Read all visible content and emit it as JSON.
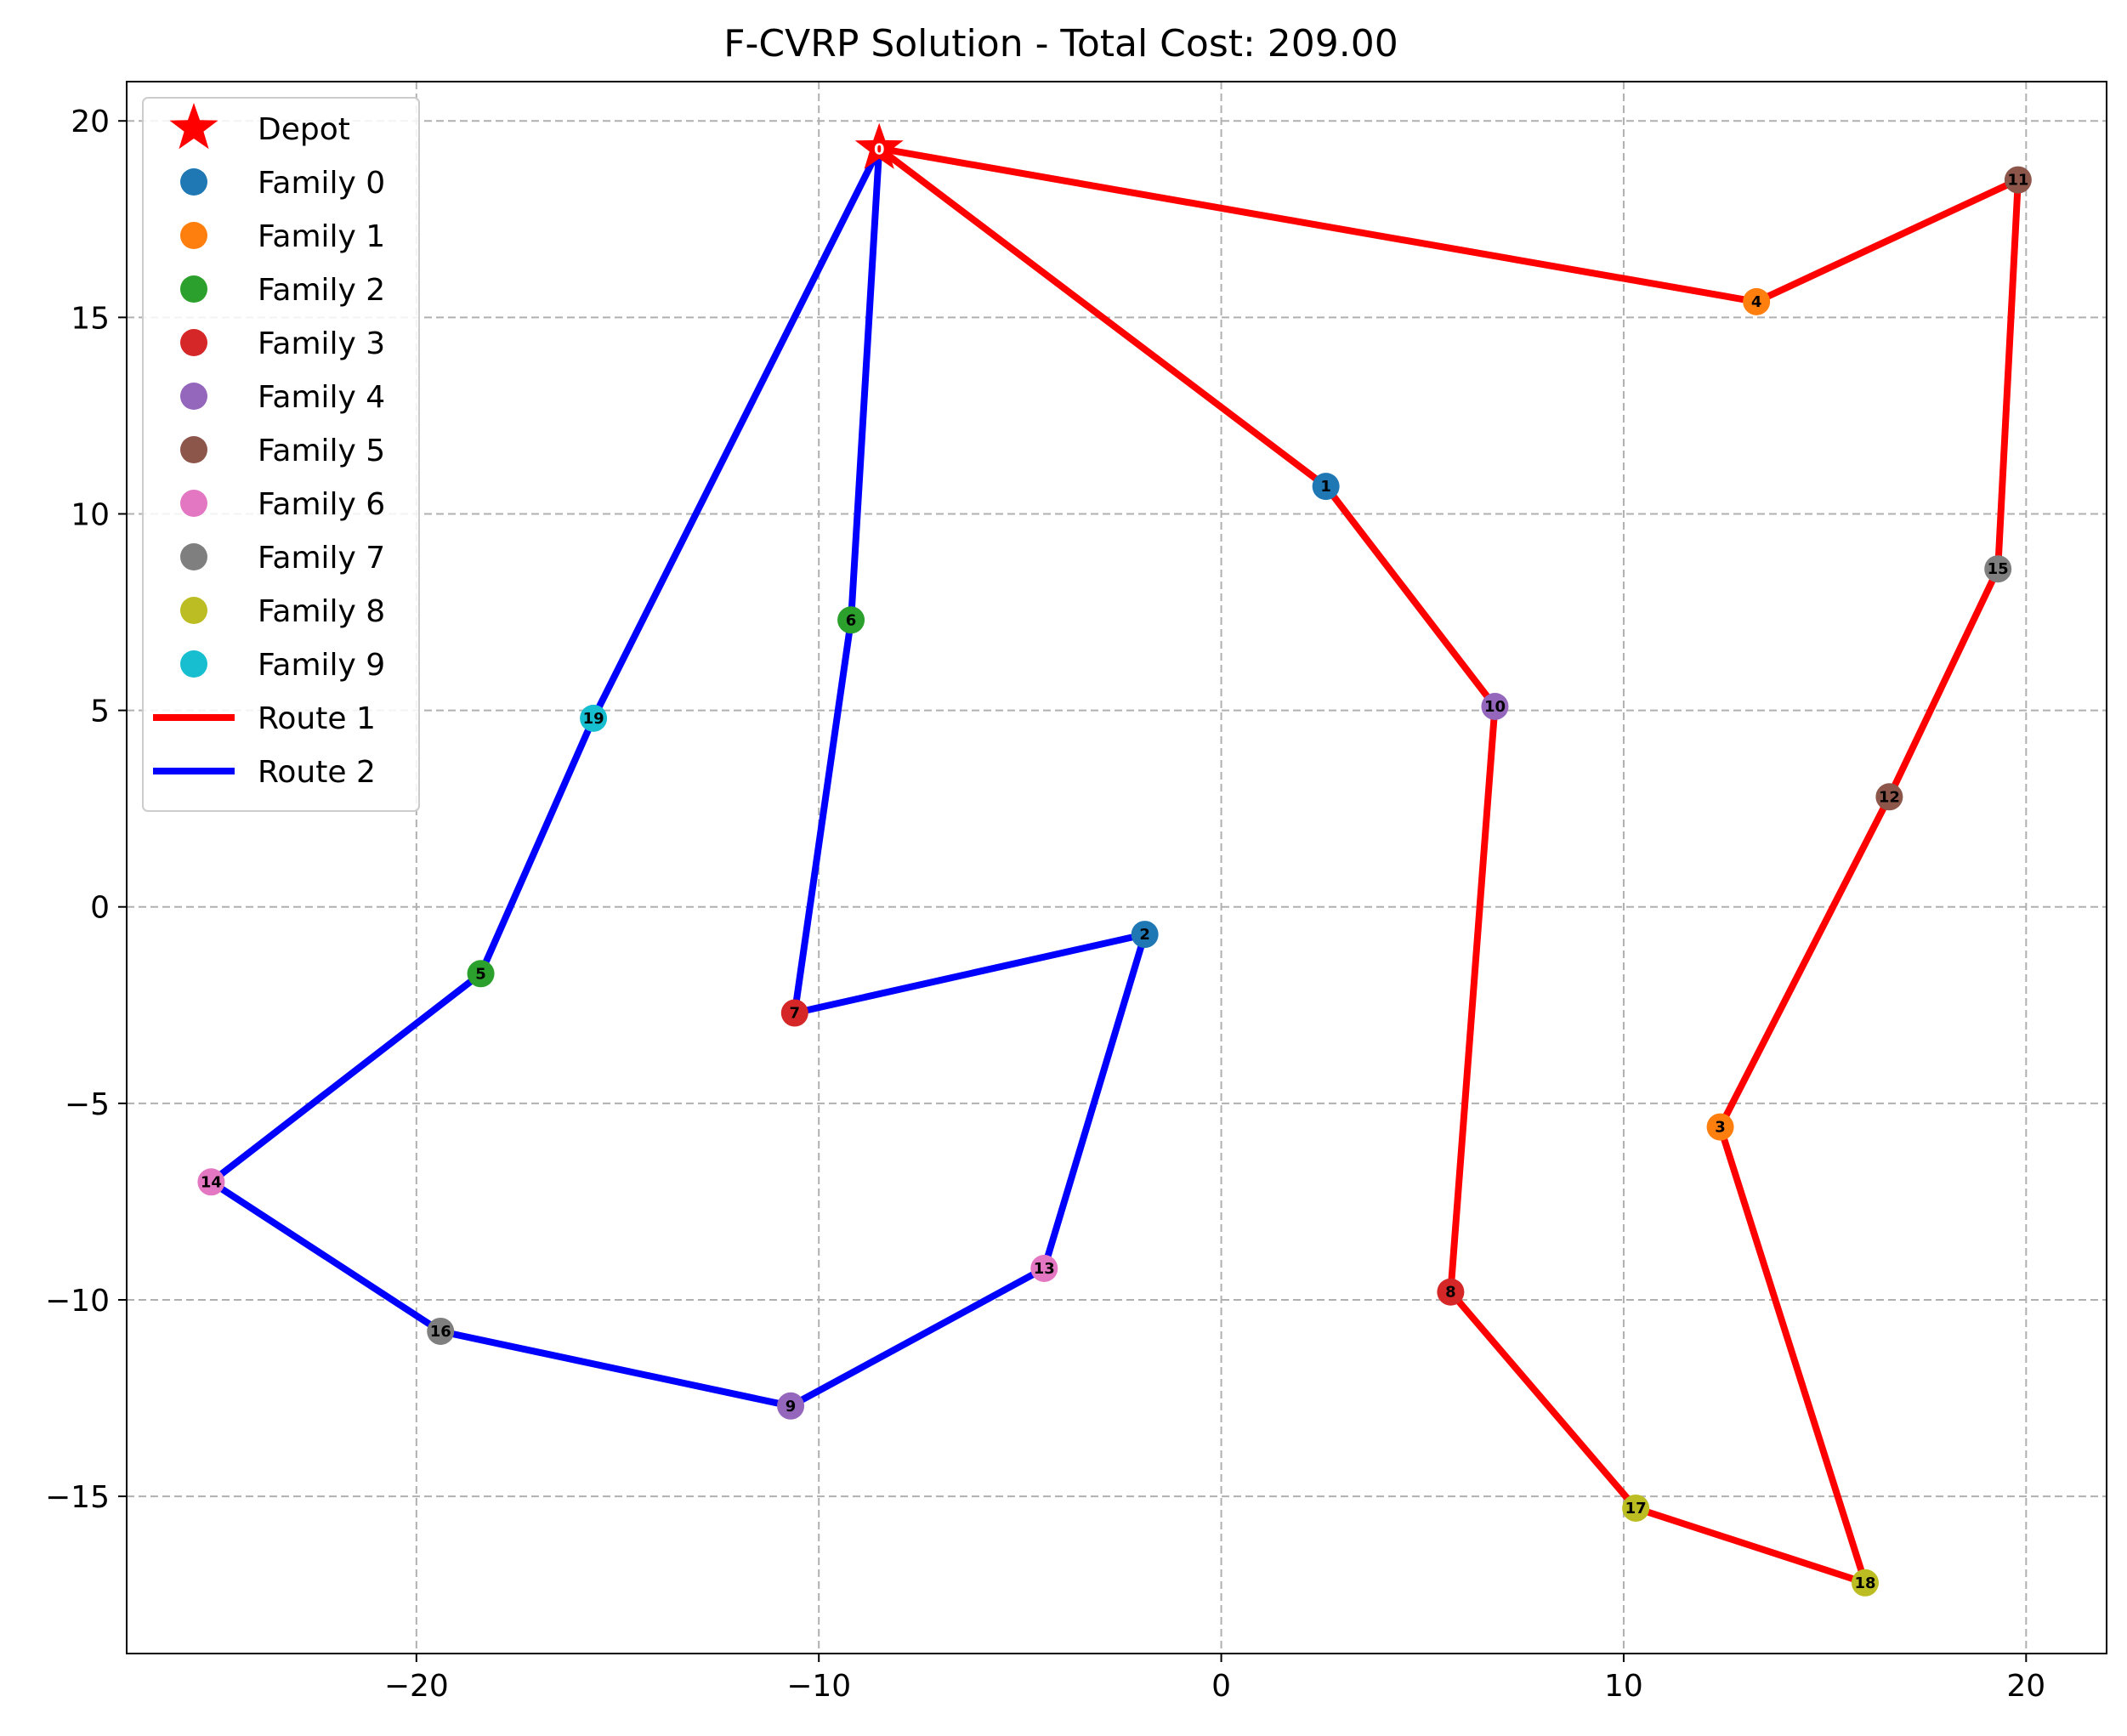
{
  "chart_data": {
    "type": "scatter",
    "title": "F-CVRP Solution - Total Cost: 209.00",
    "xlabel": "",
    "ylabel": "",
    "xlim": [
      -27.2,
      22.0
    ],
    "ylim": [
      -19.0,
      21.0
    ],
    "x_ticks": [
      -20,
      -10,
      0,
      10,
      20
    ],
    "y_ticks": [
      -15,
      -10,
      -5,
      0,
      5,
      10,
      15,
      20
    ],
    "x_tick_labels": [
      "−20",
      "−10",
      "0",
      "10",
      "20"
    ],
    "y_tick_labels": [
      "−15",
      "−10",
      "−5",
      "0",
      "5",
      "10",
      "15",
      "20"
    ],
    "grid": true,
    "legend_position": "top-left",
    "depot": {
      "name": "Depot",
      "id": "0",
      "x": -8.5,
      "y": 19.3,
      "color": "#ff0000"
    },
    "families": [
      {
        "name": "Family 0",
        "color": "#1f77b4"
      },
      {
        "name": "Family 1",
        "color": "#ff7f0e"
      },
      {
        "name": "Family 2",
        "color": "#2ca02c"
      },
      {
        "name": "Family 3",
        "color": "#d62728"
      },
      {
        "name": "Family 4",
        "color": "#9467bd"
      },
      {
        "name": "Family 5",
        "color": "#8c564b"
      },
      {
        "name": "Family 6",
        "color": "#e377c2"
      },
      {
        "name": "Family 7",
        "color": "#7f7f7f"
      },
      {
        "name": "Family 8",
        "color": "#bcbd22"
      },
      {
        "name": "Family 9",
        "color": "#17becf"
      }
    ],
    "customers": [
      {
        "id": "1",
        "family": 0,
        "x": 2.6,
        "y": 10.7
      },
      {
        "id": "2",
        "family": 0,
        "x": -1.9,
        "y": -0.7
      },
      {
        "id": "3",
        "family": 1,
        "x": 12.4,
        "y": -5.6
      },
      {
        "id": "4",
        "family": 1,
        "x": 13.3,
        "y": 15.4
      },
      {
        "id": "5",
        "family": 2,
        "x": -18.4,
        "y": -1.7
      },
      {
        "id": "6",
        "family": 2,
        "x": -9.2,
        "y": 7.3
      },
      {
        "id": "7",
        "family": 3,
        "x": -10.6,
        "y": -2.7
      },
      {
        "id": "8",
        "family": 3,
        "x": 5.7,
        "y": -9.8
      },
      {
        "id": "9",
        "family": 4,
        "x": -10.7,
        "y": -12.7
      },
      {
        "id": "10",
        "family": 4,
        "x": 6.8,
        "y": 5.1
      },
      {
        "id": "11",
        "family": 5,
        "x": 19.8,
        "y": 18.5
      },
      {
        "id": "12",
        "family": 5,
        "x": 16.6,
        "y": 2.8
      },
      {
        "id": "13",
        "family": 6,
        "x": -4.4,
        "y": -9.2
      },
      {
        "id": "14",
        "family": 6,
        "x": -25.1,
        "y": -7.0
      },
      {
        "id": "15",
        "family": 7,
        "x": 19.3,
        "y": 8.6
      },
      {
        "id": "16",
        "family": 7,
        "x": -19.4,
        "y": -10.8
      },
      {
        "id": "17",
        "family": 8,
        "x": 10.3,
        "y": -15.3
      },
      {
        "id": "18",
        "family": 8,
        "x": 16.0,
        "y": -17.2
      },
      {
        "id": "19",
        "family": 9,
        "x": -15.6,
        "y": 4.8
      }
    ],
    "routes": [
      {
        "name": "Route 1",
        "color": "#ff0000",
        "stops": [
          "0",
          "4",
          "11",
          "15",
          "12",
          "3",
          "18",
          "17",
          "8",
          "10",
          "1",
          "0"
        ]
      },
      {
        "name": "Route 2",
        "color": "#0000ff",
        "stops": [
          "0",
          "6",
          "7",
          "2",
          "13",
          "9",
          "16",
          "14",
          "5",
          "19",
          "0"
        ]
      }
    ]
  }
}
